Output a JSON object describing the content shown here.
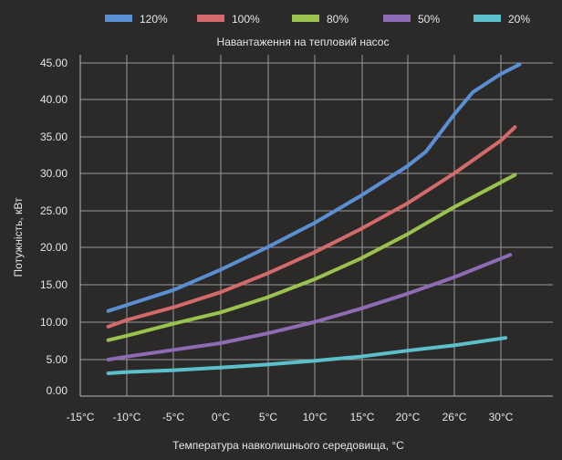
{
  "chart_data": {
    "type": "line",
    "title": "Навантаження на тепловий насос",
    "xlabel": "Температура навколишнього середовища, °С",
    "ylabel": "Потужність, кВт",
    "x_tick_labels": [
      "-15°C",
      "-10°C",
      "-5°C",
      "0°C",
      "5°C",
      "10°C",
      "15°C",
      "20°C",
      "26°C",
      "30°C"
    ],
    "y_tick_labels": [
      "0.00",
      "5.00",
      "10.00",
      "15.00",
      "20.00",
      "25.00",
      "30.00",
      "35.00",
      "40.00",
      "45.00"
    ],
    "xlim": [
      -15,
      35
    ],
    "ylim": [
      0,
      45
    ],
    "grid": true,
    "legend_position": "top",
    "series": [
      {
        "name": "120%",
        "color": "#5b8fd4",
        "x": [
          -12,
          -10,
          -5,
          0,
          5,
          10,
          15,
          20,
          22,
          25,
          27,
          30,
          32
        ],
        "y": [
          11.5,
          12.3,
          14.3,
          17.0,
          20.0,
          23.3,
          27.0,
          31.0,
          33.0,
          38.0,
          41.0,
          43.5,
          44.8
        ]
      },
      {
        "name": "100%",
        "color": "#d46a6a",
        "x": [
          -12,
          -10,
          -5,
          0,
          5,
          10,
          15,
          20,
          25,
          30,
          31.5
        ],
        "y": [
          9.4,
          10.3,
          12.0,
          14.0,
          16.5,
          19.3,
          22.5,
          26.0,
          30.0,
          34.5,
          36.3
        ]
      },
      {
        "name": "80%",
        "color": "#9ac34e",
        "x": [
          -12,
          -10,
          -5,
          0,
          5,
          10,
          15,
          20,
          25,
          30,
          31.5
        ],
        "y": [
          7.6,
          8.2,
          9.8,
          11.3,
          13.3,
          15.7,
          18.5,
          21.8,
          25.5,
          28.8,
          29.8
        ]
      },
      {
        "name": "50%",
        "color": "#8d6bb5",
        "x": [
          -12,
          -10,
          -5,
          0,
          5,
          10,
          15,
          20,
          25,
          30,
          31
        ],
        "y": [
          5.0,
          5.4,
          6.3,
          7.2,
          8.5,
          10.0,
          11.8,
          13.8,
          16.0,
          18.5,
          19.0
        ]
      },
      {
        "name": "20%",
        "color": "#5bc0cc",
        "x": [
          -12,
          -10,
          -5,
          0,
          5,
          10,
          15,
          20,
          25,
          30.5
        ],
        "y": [
          2.8,
          3.0,
          3.3,
          3.7,
          4.2,
          4.8,
          5.4,
          6.2,
          6.9,
          7.9
        ]
      }
    ]
  }
}
